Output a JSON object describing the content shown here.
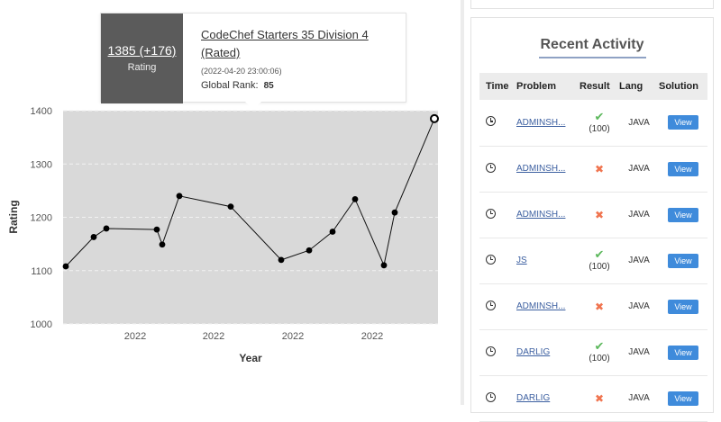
{
  "chart_data": {
    "type": "line",
    "xlabel": "Year",
    "ylabel": "Rating",
    "ylim": [
      1000,
      1400
    ],
    "yticks": [
      "1000",
      "1100",
      "1200",
      "1300",
      "1400"
    ],
    "xticks": [
      "2022",
      "2022",
      "2022",
      "2022"
    ],
    "grid": true,
    "series": [
      {
        "values": [
          1108,
          1163,
          1179,
          1177,
          1149,
          1240,
          1220,
          1120,
          1138,
          1173,
          1234,
          1110,
          1209,
          1385
        ]
      }
    ],
    "highlighted_point": 13,
    "colors": {
      "plot_bg": "#d9d9d9",
      "line": "#111111"
    }
  },
  "tooltip": {
    "rating": "1385 (+176)",
    "rating_label": "Rating",
    "contest": "CodeChef Starters 35 Division 4 (Rated)",
    "date": "(2022-04-20 23:00:06)",
    "rank_label": "Global Rank:",
    "rank_value": "85"
  },
  "activity": {
    "title": "Recent Activity",
    "headers": {
      "time": "Time",
      "problem": "Problem",
      "result": "Result",
      "lang": "Lang",
      "solution": "Solution"
    },
    "rows": [
      {
        "problem": "ADMINSH...",
        "result": "ok",
        "score": "(100)",
        "lang": "JAVA",
        "action": "View"
      },
      {
        "problem": "ADMINSH...",
        "result": "bad",
        "score": "",
        "lang": "JAVA",
        "action": "View"
      },
      {
        "problem": "ADMINSH...",
        "result": "bad",
        "score": "",
        "lang": "JAVA",
        "action": "View"
      },
      {
        "problem": "JS",
        "result": "ok",
        "score": "(100)",
        "lang": "JAVA",
        "action": "View"
      },
      {
        "problem": "ADMINSH...",
        "result": "bad",
        "score": "",
        "lang": "JAVA",
        "action": "View"
      },
      {
        "problem": "DARLIG",
        "result": "ok",
        "score": "(100)",
        "lang": "JAVA",
        "action": "View"
      },
      {
        "problem": "DARLIG",
        "result": "bad",
        "score": "",
        "lang": "JAVA",
        "action": "View"
      }
    ],
    "icons": {
      "time": "clock-icon",
      "ok": "check-icon",
      "bad": "cross-icon"
    },
    "symbols": {
      "ok": "✔",
      "bad": "✖"
    }
  }
}
